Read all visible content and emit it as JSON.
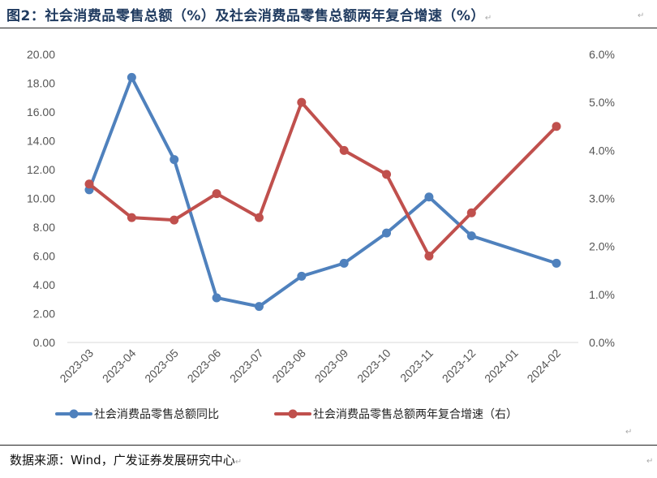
{
  "title": "图2：社会消费品零售总额（%）及社会消费品零售总额两年复合增速（%）",
  "source": "数据来源：Wind，广发证券发展研究中心",
  "chart_data": {
    "type": "line",
    "categories": [
      "2023-03",
      "2023-04",
      "2023-05",
      "2023-06",
      "2023-07",
      "2023-08",
      "2023-09",
      "2023-10",
      "2023-11",
      "2023-12",
      "2024-01",
      "2024-02"
    ],
    "y_left": {
      "ticks": [
        "0.00",
        "2.00",
        "4.00",
        "6.00",
        "8.00",
        "10.00",
        "12.00",
        "14.00",
        "16.00",
        "18.00",
        "20.00"
      ],
      "ylim": [
        0,
        20
      ]
    },
    "y_right": {
      "ticks": [
        "0.0%",
        "1.0%",
        "2.0%",
        "3.0%",
        "4.0%",
        "5.0%",
        "6.0%"
      ],
      "ylim": [
        0,
        6
      ]
    },
    "grid": false,
    "legend": "bottom",
    "series": [
      {
        "name": "社会消费品零售总额同比",
        "axis": "left",
        "color": "#4f81bd",
        "values": [
          10.6,
          18.4,
          12.7,
          3.1,
          2.5,
          4.6,
          5.5,
          7.6,
          10.1,
          7.4,
          null,
          5.5
        ]
      },
      {
        "name": "社会消费品零售总额两年复合增速（右）",
        "axis": "right",
        "color": "#c0504d",
        "values": [
          3.3,
          2.6,
          2.55,
          3.1,
          2.6,
          5.0,
          4.0,
          3.5,
          1.8,
          2.7,
          null,
          4.5
        ]
      }
    ]
  }
}
